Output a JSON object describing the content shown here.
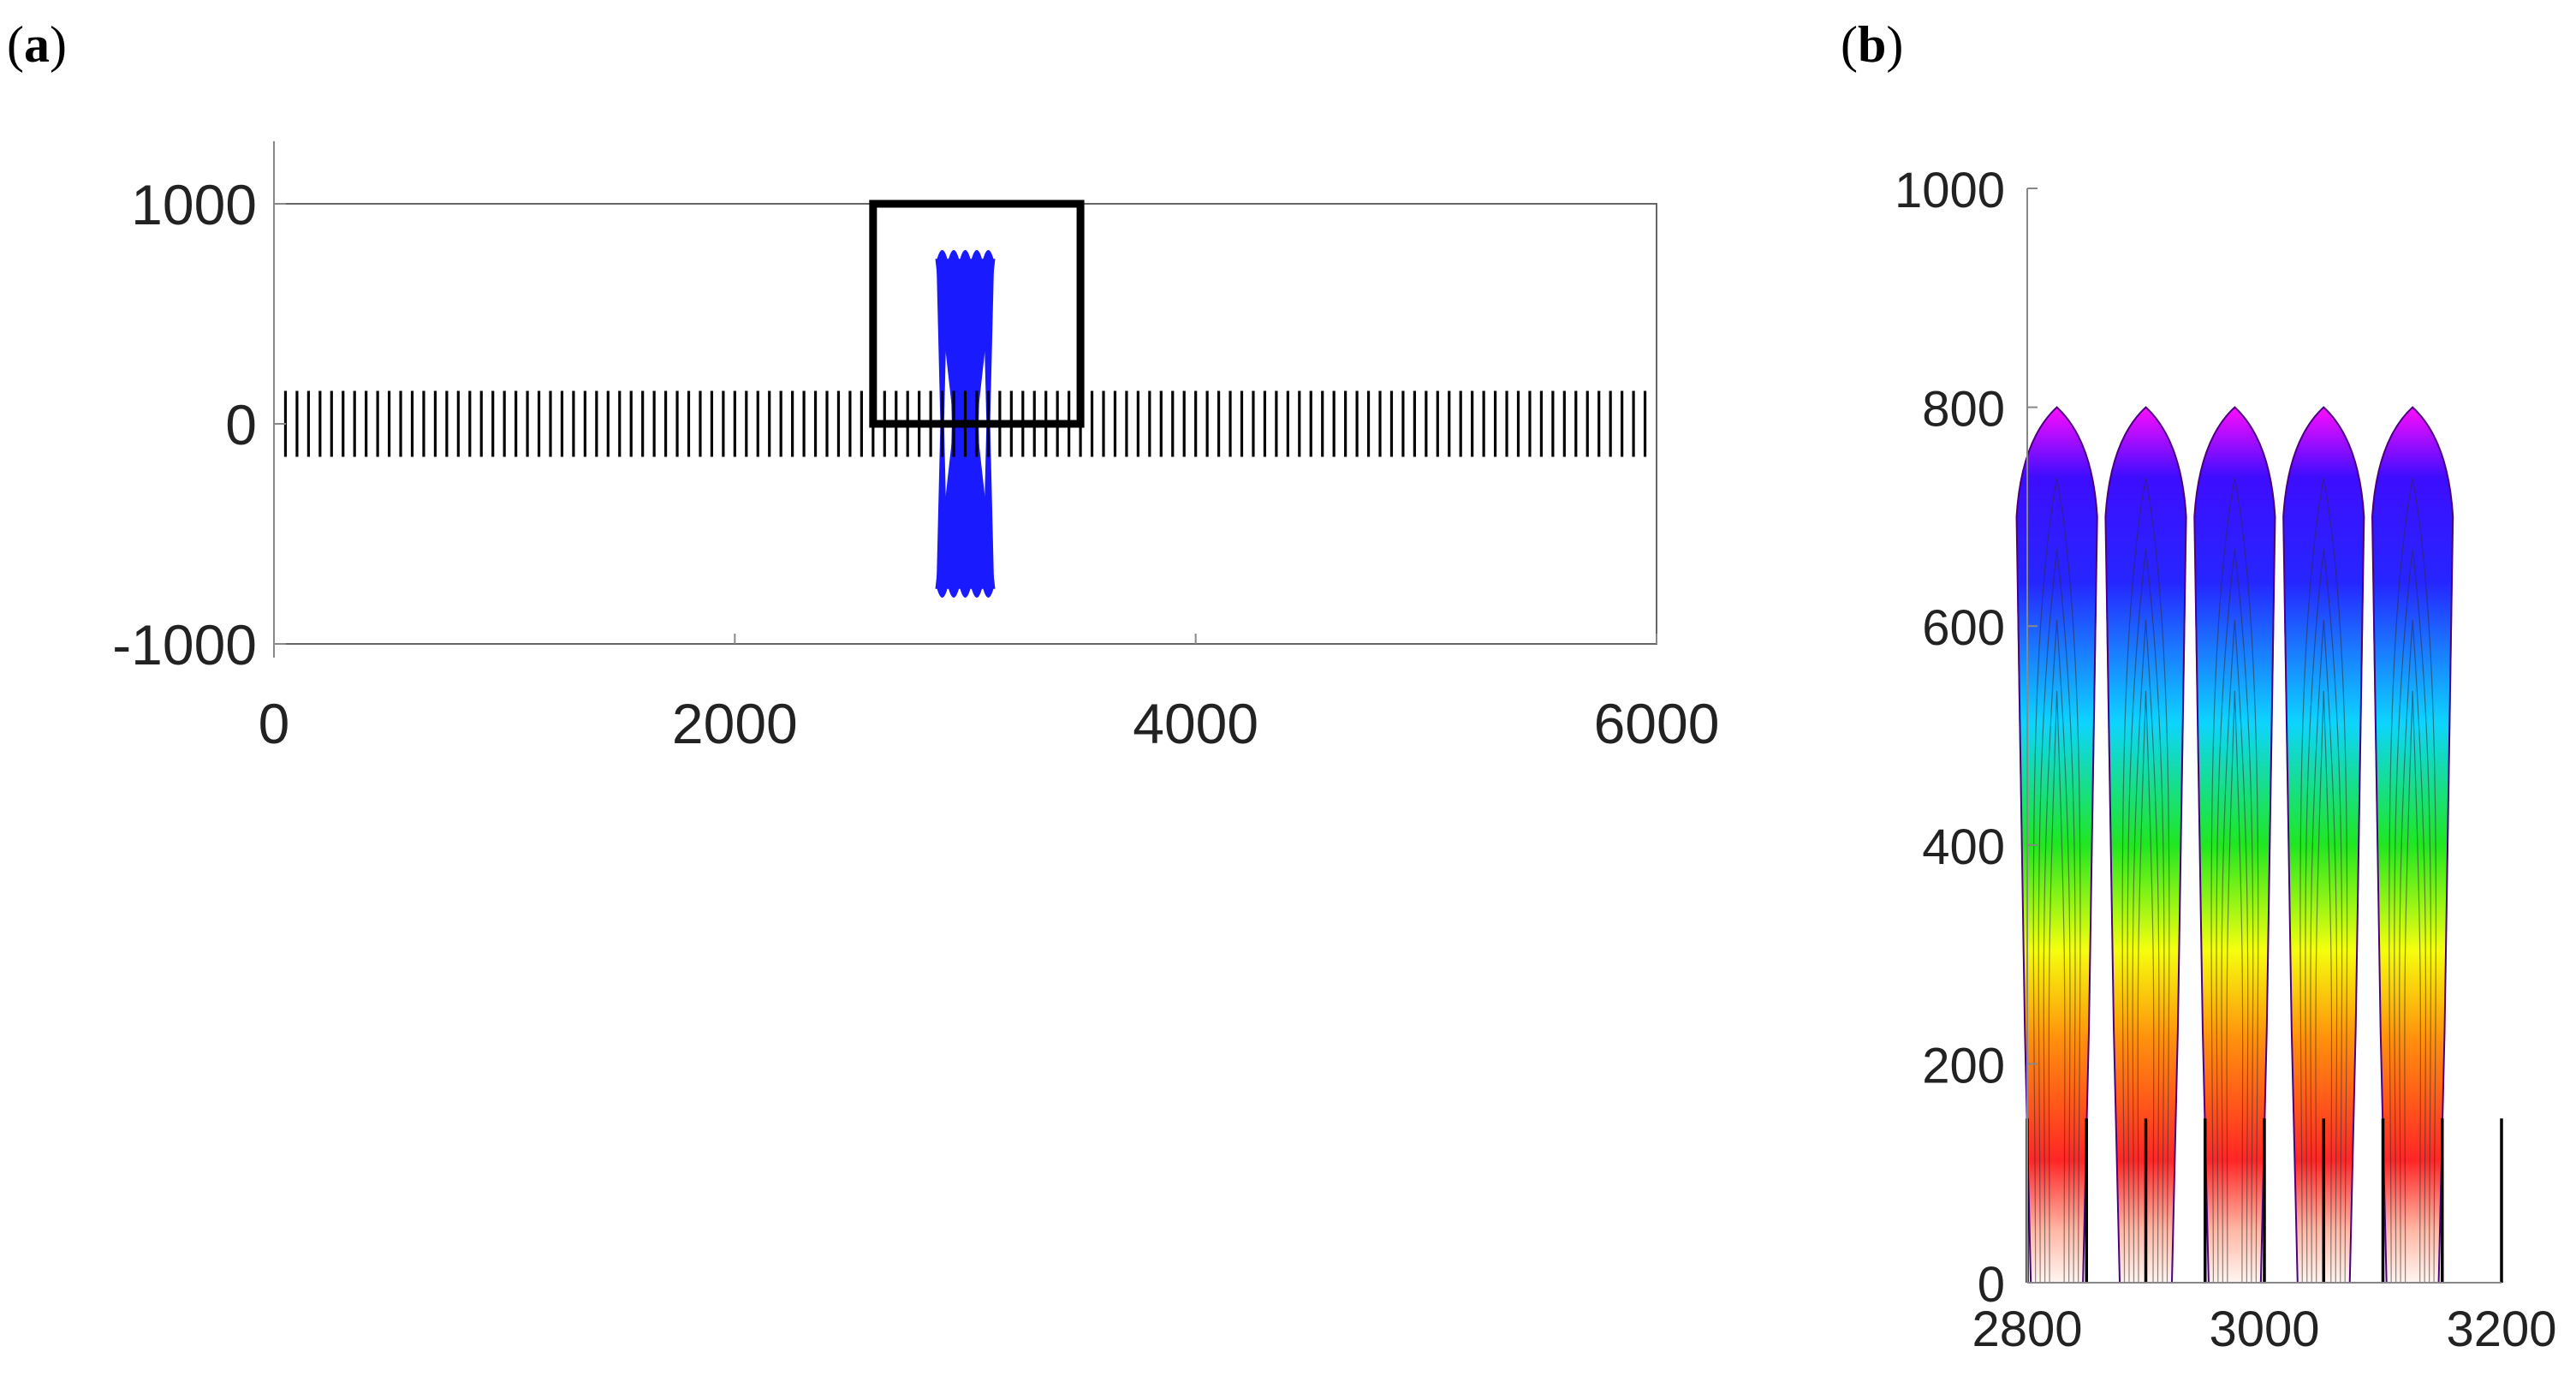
{
  "chart_data": [
    {
      "panel": "a",
      "type": "line",
      "xlim": [
        0,
        6000
      ],
      "ylim": [
        -1000,
        1000
      ],
      "xticks": [
        0,
        2000,
        4000,
        6000
      ],
      "yticks": [
        1000,
        0,
        -1000
      ],
      "xtick_labels": [
        "0",
        "2000",
        "4000",
        "6000"
      ],
      "ytick_labels": [
        "1000",
        "0",
        "-1000"
      ],
      "xlabel": "",
      "ylabel": "",
      "series": [
        {
          "kind": "vertical-segments",
          "color": "#000000",
          "x_start": 50,
          "x_end": 5950,
          "x_step": 50,
          "y_from": -150,
          "y_to": 150
        },
        {
          "kind": "lobes",
          "color": "#1a1aff",
          "centers": [
            2900,
            2950,
            3000,
            3050,
            3100
          ],
          "y_top": 800,
          "y_bottom": -800
        }
      ],
      "annotation_box": {
        "x": [
          2600,
          3500
        ],
        "y": [
          0,
          1000
        ]
      }
    },
    {
      "panel": "b",
      "type": "line",
      "xlim": [
        2800,
        3200
      ],
      "ylim": [
        0,
        1000
      ],
      "xticks": [
        2800,
        3000,
        3200
      ],
      "yticks": [
        0,
        200,
        400,
        600,
        800,
        1000
      ],
      "xtick_labels": [
        "2800",
        "3000",
        "3200"
      ],
      "ytick_labels": [
        "0",
        "200",
        "400",
        "600",
        "800",
        "1000"
      ],
      "xlabel": "",
      "ylabel": "",
      "series": [
        {
          "kind": "vertical-segments",
          "color": "#000000",
          "x": [
            2800,
            2850,
            2900,
            2950,
            3000,
            3050,
            3100,
            3150,
            3200
          ],
          "y_from": 0,
          "y_to": 150
        },
        {
          "kind": "lobes",
          "centers": [
            2875,
            2925,
            2975,
            3025,
            3075,
            3125
          ],
          "tip_x": [
            2825,
            2900,
            2975,
            3050,
            3125
          ],
          "y_tip": 800
        }
      ]
    }
  ],
  "labels": {
    "panel_a": "a",
    "panel_b": "b"
  },
  "colors": {
    "lobe_outer": "#ff00ff",
    "lobe_blue": "#0000ff",
    "lobe_cyan": "#00c8ff",
    "lobe_green": "#00e000",
    "lobe_yellow": "#ffff00",
    "lobe_orange": "#ff8800",
    "lobe_red": "#ff0000"
  }
}
